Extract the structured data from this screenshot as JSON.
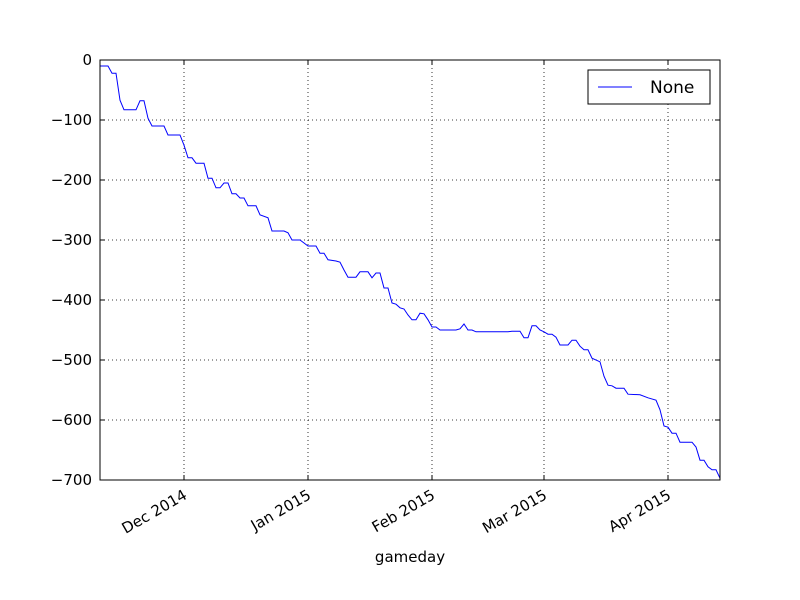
{
  "chart_data": {
    "type": "line",
    "x_label": "gameday",
    "x": [
      735547,
      735549,
      735550,
      735551,
      735552,
      735553,
      735556,
      735557,
      735558,
      735559,
      735560,
      735563,
      735564,
      735567,
      735568,
      735569,
      735570,
      735571,
      735573,
      735574,
      735575,
      735576,
      735577,
      735578,
      735579,
      735580,
      735581,
      735582,
      735583,
      735584,
      735586,
      735587,
      735589,
      735590,
      735593,
      735594,
      735595,
      735597,
      735598,
      735599,
      735601,
      735602,
      735603,
      735604,
      735606,
      735607,
      735608,
      735609,
      735611,
      735612,
      735614,
      735615,
      735616,
      735617,
      735618,
      735619,
      735620,
      735621,
      735622,
      735623,
      735624,
      735625,
      735626,
      735627,
      735628,
      735629,
      735630,
      735631,
      735632,
      735636,
      735637,
      735638,
      735639,
      735640,
      735641,
      735649,
      735650,
      735652,
      735653,
      735654,
      735655,
      735656,
      735657,
      735658,
      735659,
      735660,
      735661,
      735662,
      735664,
      735665,
      735666,
      735667,
      735668,
      735669,
      735670,
      735672,
      735673,
      735674,
      735675,
      735676,
      735678,
      735679,
      735682,
      735684,
      735686,
      735687,
      735688,
      735689,
      735690,
      735691,
      735692,
      735695,
      735696,
      735697,
      735698,
      735699,
      735700,
      735701,
      735702
    ],
    "series": [
      {
        "name": "None",
        "color": "#0000ff",
        "values": [
          -10,
          -10,
          -22,
          -22,
          -67,
          -83,
          -83,
          -68,
          -68,
          -97,
          -110,
          -110,
          -125,
          -125,
          -142,
          -163,
          -163,
          -172,
          -172,
          -197,
          -197,
          -213,
          -213,
          -205,
          -205,
          -223,
          -223,
          -230,
          -230,
          -243,
          -243,
          -258,
          -263,
          -285,
          -285,
          -288,
          -300,
          -300,
          -305,
          -310,
          -310,
          -322,
          -322,
          -333,
          -335,
          -337,
          -350,
          -362,
          -362,
          -353,
          -353,
          -363,
          -355,
          -355,
          -380,
          -380,
          -405,
          -407,
          -413,
          -415,
          -425,
          -433,
          -433,
          -422,
          -423,
          -433,
          -445,
          -445,
          -450,
          -450,
          -448,
          -440,
          -450,
          -450,
          -453,
          -453,
          -452,
          -452,
          -463,
          -463,
          -443,
          -443,
          -450,
          -453,
          -457,
          -457,
          -462,
          -475,
          -475,
          -467,
          -467,
          -477,
          -483,
          -483,
          -497,
          -503,
          -527,
          -542,
          -543,
          -547,
          -547,
          -557,
          -558,
          -563,
          -567,
          -583,
          -610,
          -612,
          -622,
          -622,
          -637,
          -637,
          -645,
          -667,
          -667,
          -678,
          -683,
          -683,
          -697
        ]
      }
    ],
    "xlim": [
      735547,
      735702
    ],
    "xticks": [
      {
        "value": 735568,
        "label": "Dec 2014"
      },
      {
        "value": 735599,
        "label": "Jan 2015"
      },
      {
        "value": 735630,
        "label": "Feb 2015"
      },
      {
        "value": 735658,
        "label": "Mar 2015"
      },
      {
        "value": 735689,
        "label": "Apr 2015"
      }
    ],
    "ylim": [
      -700,
      0
    ],
    "yticks": [
      {
        "value": -700,
        "label": "−700"
      },
      {
        "value": -600,
        "label": "−600"
      },
      {
        "value": -500,
        "label": "−500"
      },
      {
        "value": -400,
        "label": "−400"
      },
      {
        "value": -300,
        "label": "−300"
      },
      {
        "value": -200,
        "label": "−200"
      },
      {
        "value": -100,
        "label": "−100"
      },
      0
    ],
    "grid": true,
    "legend": "upper right"
  }
}
